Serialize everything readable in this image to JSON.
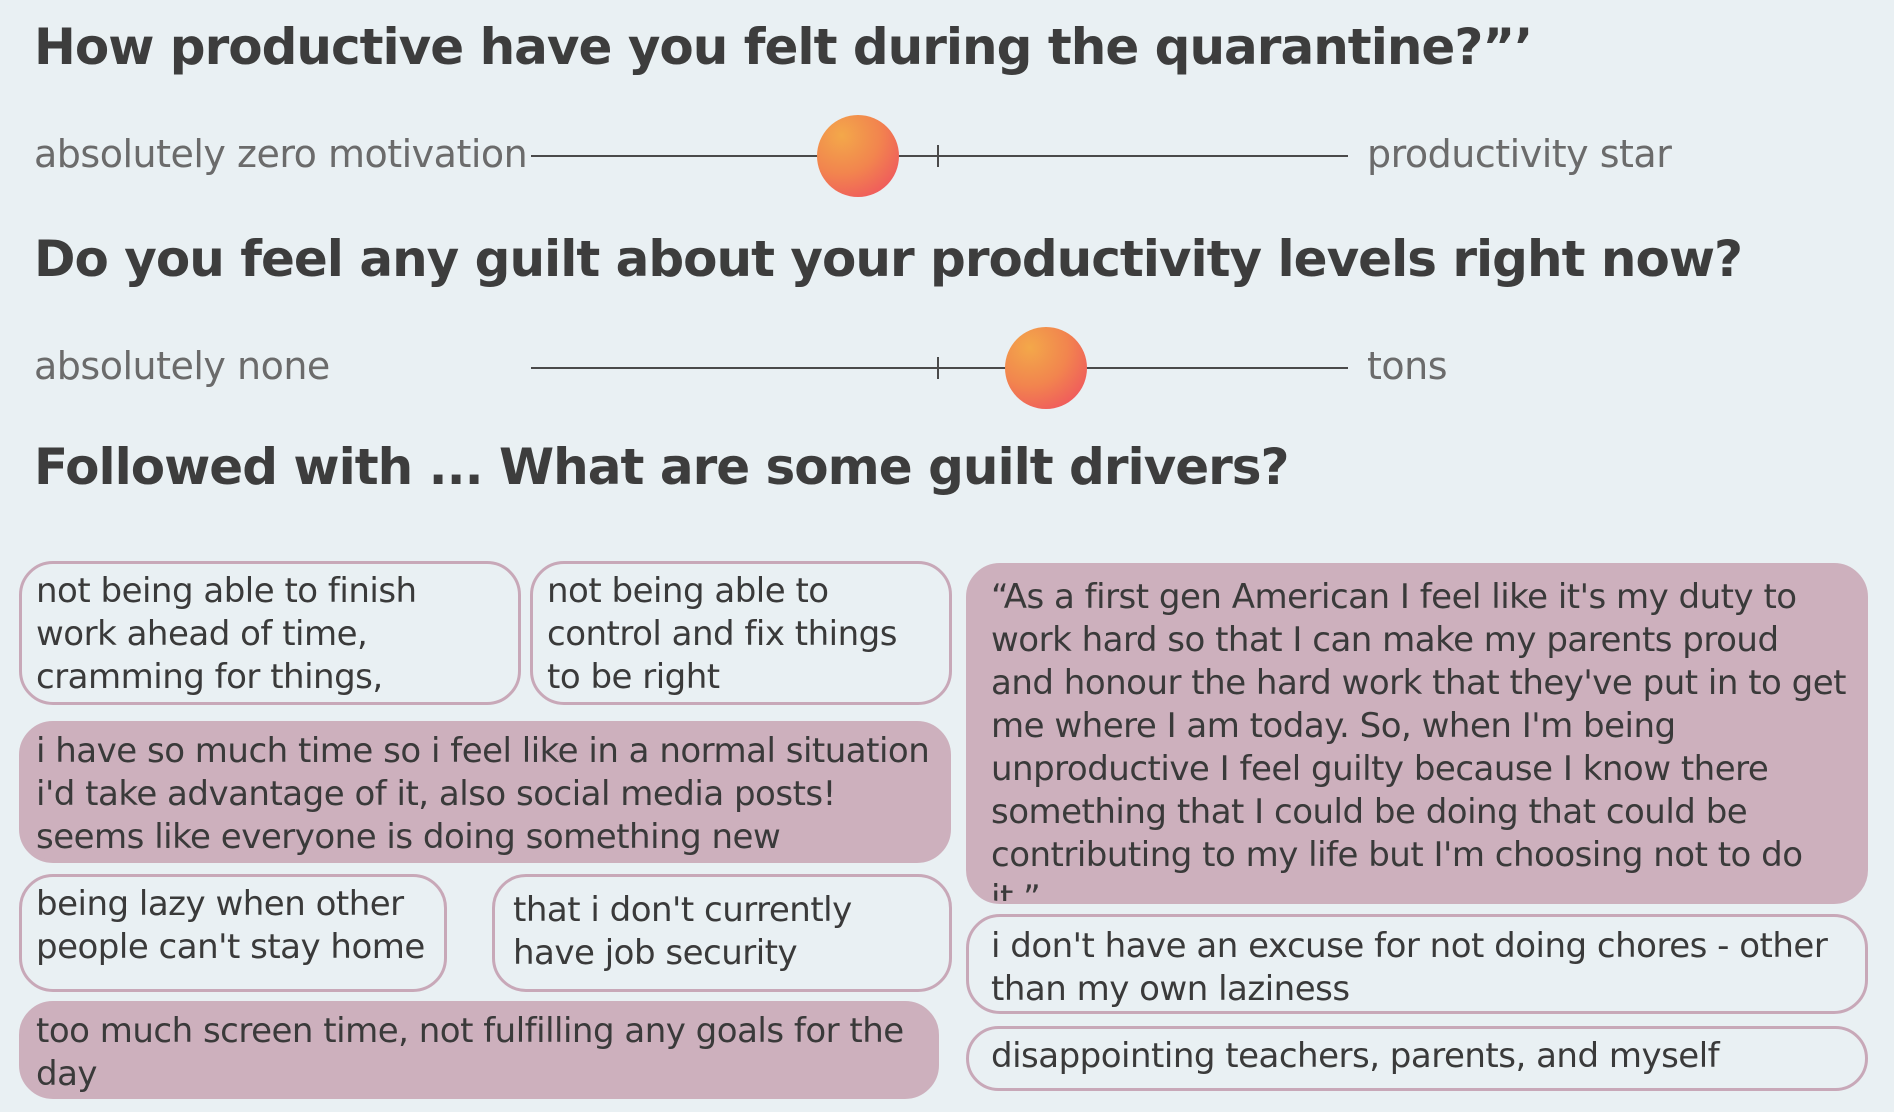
{
  "questions": {
    "productivity": {
      "title": "How productive have you felt during the quarantine?”’",
      "left_label": "absolutely zero motivation",
      "right_label": "productivity star",
      "value": 0.4
    },
    "guilt": {
      "title": "Do you feel any guilt about your productivity levels right now?",
      "left_label": "absolutely none",
      "right_label": "tons",
      "value": 0.63
    },
    "followup": {
      "title": "Followed with ... What are some guilt drivers?"
    }
  },
  "responses": [
    "not being able to finish work ahead of time, cramming for things, cheating",
    "not being able to control and fix things to be right",
    "i have so much time so i feel like in a normal situation i'd take advantage of it, also social media posts! seems like everyone is doing something new",
    "being lazy when other people can't stay home",
    "that i don't currently have job security",
    "too much screen time, not fulfilling any goals for the day",
    "“As a first gen American I feel like it's my duty to work hard so that I can make my parents proud and honour the hard work that they've put in to get me where I am today. So, when I'm being unproductive I feel guilty because I know there something that I could be doing that could be contributing to my life but I'm choosing not to do it.”",
    "i don't have an excuse for not doing chores - other than my own laziness",
    "disappointing teachers, parents, and myself"
  ],
  "colors": {
    "background": "#e9f0f3",
    "bubble_fill": "#cdb0bd",
    "bubble_border": "#c8a8b8",
    "knob_gradient_start": "#f3a84a",
    "knob_gradient_end": "#ee4663"
  }
}
